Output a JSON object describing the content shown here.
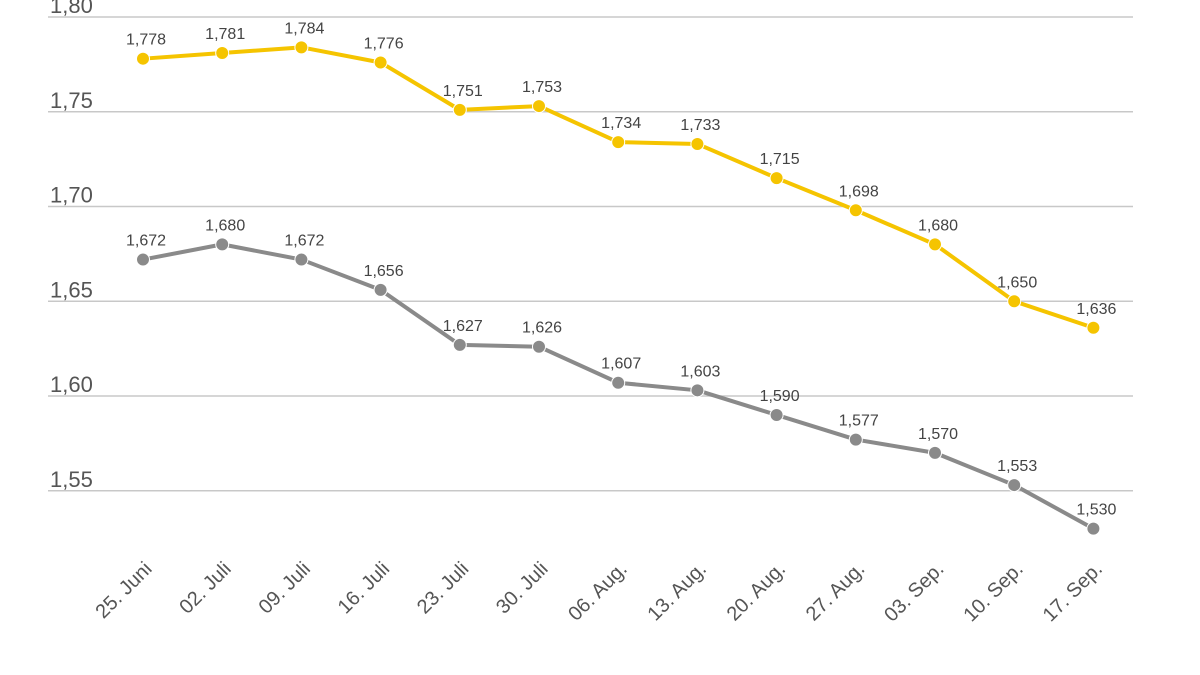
{
  "chart_data": {
    "type": "line",
    "title": "",
    "xlabel": "",
    "ylabel": "",
    "ylim": [
      1.5,
      1.8
    ],
    "y_ticks": [
      1.8,
      1.75,
      1.7,
      1.65,
      1.6,
      1.55
    ],
    "y_tick_labels": [
      "1,80",
      "1,75",
      "1,70",
      "1,65",
      "1,60",
      "1,55"
    ],
    "grid": true,
    "categories": [
      "25. Juni",
      "02. Juli",
      "09. Juli",
      "16. Juli",
      "23. Juli",
      "30. Juli",
      "06. Aug.",
      "13. Aug.",
      "20. Aug.",
      "27. Aug.",
      "03. Sep.",
      "10. Sep.",
      "17. Sep."
    ],
    "series": [
      {
        "name": "yellow-series",
        "color": "#F5C400",
        "values": [
          1.778,
          1.781,
          1.784,
          1.776,
          1.751,
          1.753,
          1.734,
          1.733,
          1.715,
          1.698,
          1.68,
          1.65,
          1.636
        ],
        "labels": [
          "1,778",
          "1,781",
          "1,784",
          "1,776",
          "1,751",
          "1,753",
          "1,734",
          "1,733",
          "1,715",
          "1,698",
          "1,680",
          "1,650",
          "1,636"
        ]
      },
      {
        "name": "gray-series",
        "color": "#8A8A8A",
        "values": [
          1.672,
          1.68,
          1.672,
          1.656,
          1.627,
          1.626,
          1.607,
          1.603,
          1.59,
          1.577,
          1.57,
          1.553,
          1.53
        ],
        "labels": [
          "1,672",
          "1,680",
          "1,672",
          "1,656",
          "1,627",
          "1,626",
          "1,607",
          "1,603",
          "1,590",
          "1,577",
          "1,570",
          "1,553",
          "1,530"
        ]
      }
    ]
  }
}
